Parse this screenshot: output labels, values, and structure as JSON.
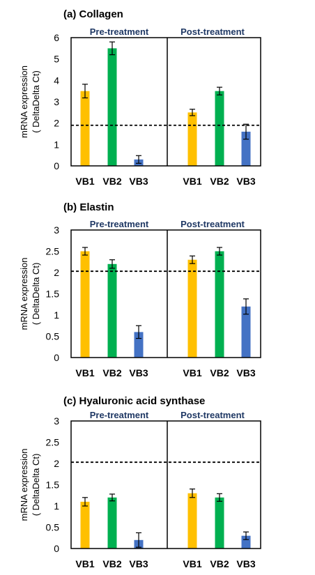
{
  "chart_data": [
    {
      "type": "bar",
      "title": "(a) Collagen",
      "ylabel_line1": "mRNA expression",
      "ylabel_line2": "( DeltaDelta Ct)",
      "ylim": [
        0,
        6
      ],
      "yticks": [
        "0",
        "1",
        "2",
        "3",
        "4",
        "5",
        "6"
      ],
      "reference_line": 1.9,
      "groups": [
        {
          "label": "Pre-treatment",
          "categories": [
            "VB1",
            "VB2",
            "VB3"
          ],
          "values": [
            3.5,
            5.5,
            0.3
          ],
          "errors": [
            0.32,
            0.3,
            0.18
          ]
        },
        {
          "label": "Post-treatment",
          "categories": [
            "VB1",
            "VB2",
            "VB3"
          ],
          "values": [
            2.5,
            3.5,
            1.6
          ],
          "errors": [
            0.15,
            0.18,
            0.35
          ]
        }
      ]
    },
    {
      "type": "bar",
      "title": "(b) Elastin",
      "ylabel_line1": "mRNA expression",
      "ylabel_line2": "( DeltaDelta Ct)",
      "ylim": [
        0,
        3
      ],
      "yticks": [
        "0",
        "0.5",
        "1",
        "1.5",
        "2",
        "2.5",
        "3"
      ],
      "reference_line": 2.03,
      "groups": [
        {
          "label": "Pre-treatment",
          "categories": [
            "VB1",
            "VB2",
            "VB3"
          ],
          "values": [
            2.5,
            2.2,
            0.6
          ],
          "errors": [
            0.09,
            0.1,
            0.15
          ]
        },
        {
          "label": "Post-treatment",
          "categories": [
            "VB1",
            "VB2",
            "VB3"
          ],
          "values": [
            2.3,
            2.5,
            1.2
          ],
          "errors": [
            0.09,
            0.09,
            0.18
          ]
        }
      ]
    },
    {
      "type": "bar",
      "title": "(c) Hyaluronic acid synthase",
      "ylabel_line1": "mRNA expression",
      "ylabel_line2": "( DeltaDelta Ct)",
      "ylim": [
        0,
        3
      ],
      "yticks": [
        "0",
        "0.5",
        "1",
        "1.5",
        "2",
        "2.5",
        "3"
      ],
      "reference_line": 2.03,
      "groups": [
        {
          "label": "Pre-treatment",
          "categories": [
            "VB1",
            "VB2",
            "VB3"
          ],
          "values": [
            1.1,
            1.2,
            0.2
          ],
          "errors": [
            0.1,
            0.08,
            0.17
          ]
        },
        {
          "label": "Post-treatment",
          "categories": [
            "VB1",
            "VB2",
            "VB3"
          ],
          "values": [
            1.3,
            1.2,
            0.3
          ],
          "errors": [
            0.1,
            0.09,
            0.09
          ]
        }
      ]
    }
  ],
  "colors": {
    "VB1": "#ffc000",
    "VB2": "#00b050",
    "VB3": "#4472c4",
    "group_label": "#1f3864",
    "axis": "#000000"
  }
}
